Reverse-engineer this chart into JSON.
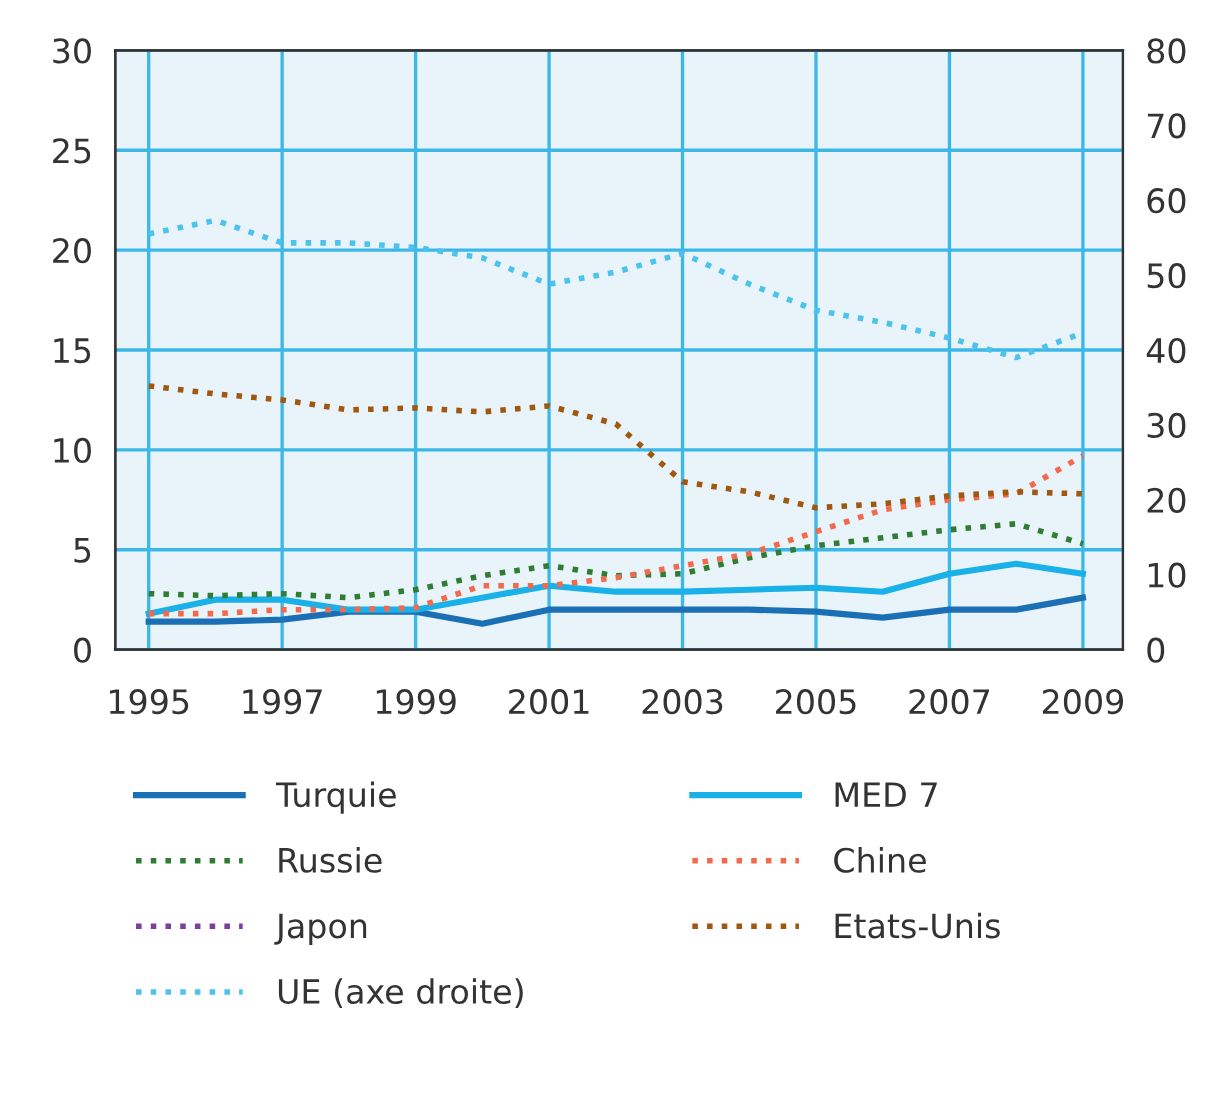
{
  "chart_data": {
    "type": "line",
    "x": [
      1995,
      1996,
      1997,
      1998,
      1999,
      2000,
      2001,
      2002,
      2003,
      2004,
      2005,
      2006,
      2007,
      2008,
      2009
    ],
    "xlim": [
      1994.5,
      2009.6
    ],
    "xticks": [
      1995,
      1997,
      1999,
      2001,
      2003,
      2005,
      2007,
      2009
    ],
    "ylim": [
      0,
      30
    ],
    "yticks": [
      0,
      5,
      10,
      15,
      20,
      25,
      30
    ],
    "y2lim": [
      0,
      80
    ],
    "y2ticks": [
      0,
      10,
      20,
      30,
      40,
      50,
      60,
      70,
      80
    ],
    "grid": true,
    "legend": "bottom",
    "marker": "none",
    "series": [
      {
        "name": "Turquie",
        "color": "#1a6fb5",
        "line_style": "solid",
        "values": [
          1.4,
          1.4,
          1.5,
          1.9,
          1.9,
          1.3,
          2.0,
          2.0,
          2.0,
          2.0,
          1.9,
          1.6,
          2.0,
          2.0,
          2.6
        ]
      },
      {
        "name": "MED 7",
        "color": "#1ab0e8",
        "line_style": "solid",
        "values": [
          1.8,
          2.5,
          2.5,
          2.0,
          2.0,
          2.6,
          3.2,
          2.9,
          2.9,
          3.0,
          3.1,
          2.9,
          3.8,
          4.3,
          3.8
        ]
      },
      {
        "name": "Russie",
        "color": "#2e7d32",
        "line_style": "dotted",
        "values": [
          2.8,
          2.7,
          2.8,
          2.6,
          3.0,
          3.7,
          4.2,
          3.7,
          3.8,
          4.6,
          5.2,
          5.6,
          6.0,
          6.3,
          5.3
        ]
      },
      {
        "name": "Chine",
        "color": "#f26a4b",
        "line_style": "dotted",
        "values": [
          1.8,
          1.8,
          2.0,
          2.0,
          2.1,
          3.2,
          3.2,
          3.6,
          4.2,
          4.8,
          5.9,
          7.0,
          7.5,
          7.8,
          9.7
        ]
      },
      {
        "name": "Japon",
        "color": "#7b3fa0",
        "line_style": "dotted",
        "values": [
          null,
          null,
          null,
          null,
          null,
          null,
          null,
          null,
          null,
          null,
          null,
          null,
          null,
          null,
          null
        ]
      },
      {
        "name": "Etats-Unis",
        "color": "#a0570f",
        "line_style": "dotted",
        "values": [
          13.2,
          12.8,
          12.5,
          12.0,
          12.1,
          11.9,
          12.2,
          11.3,
          8.4,
          7.9,
          7.1,
          7.3,
          7.7,
          7.9,
          7.8
        ]
      },
      {
        "name": "UE (axe droite)",
        "color": "#4cc3ec",
        "line_style": "dotted",
        "axis": "y2",
        "values": [
          55.5,
          57.3,
          54.3,
          54.3,
          53.7,
          52.3,
          48.8,
          50.4,
          52.9,
          48.8,
          45.3,
          43.7,
          41.6,
          39.0,
          42.3
        ]
      }
    ]
  }
}
